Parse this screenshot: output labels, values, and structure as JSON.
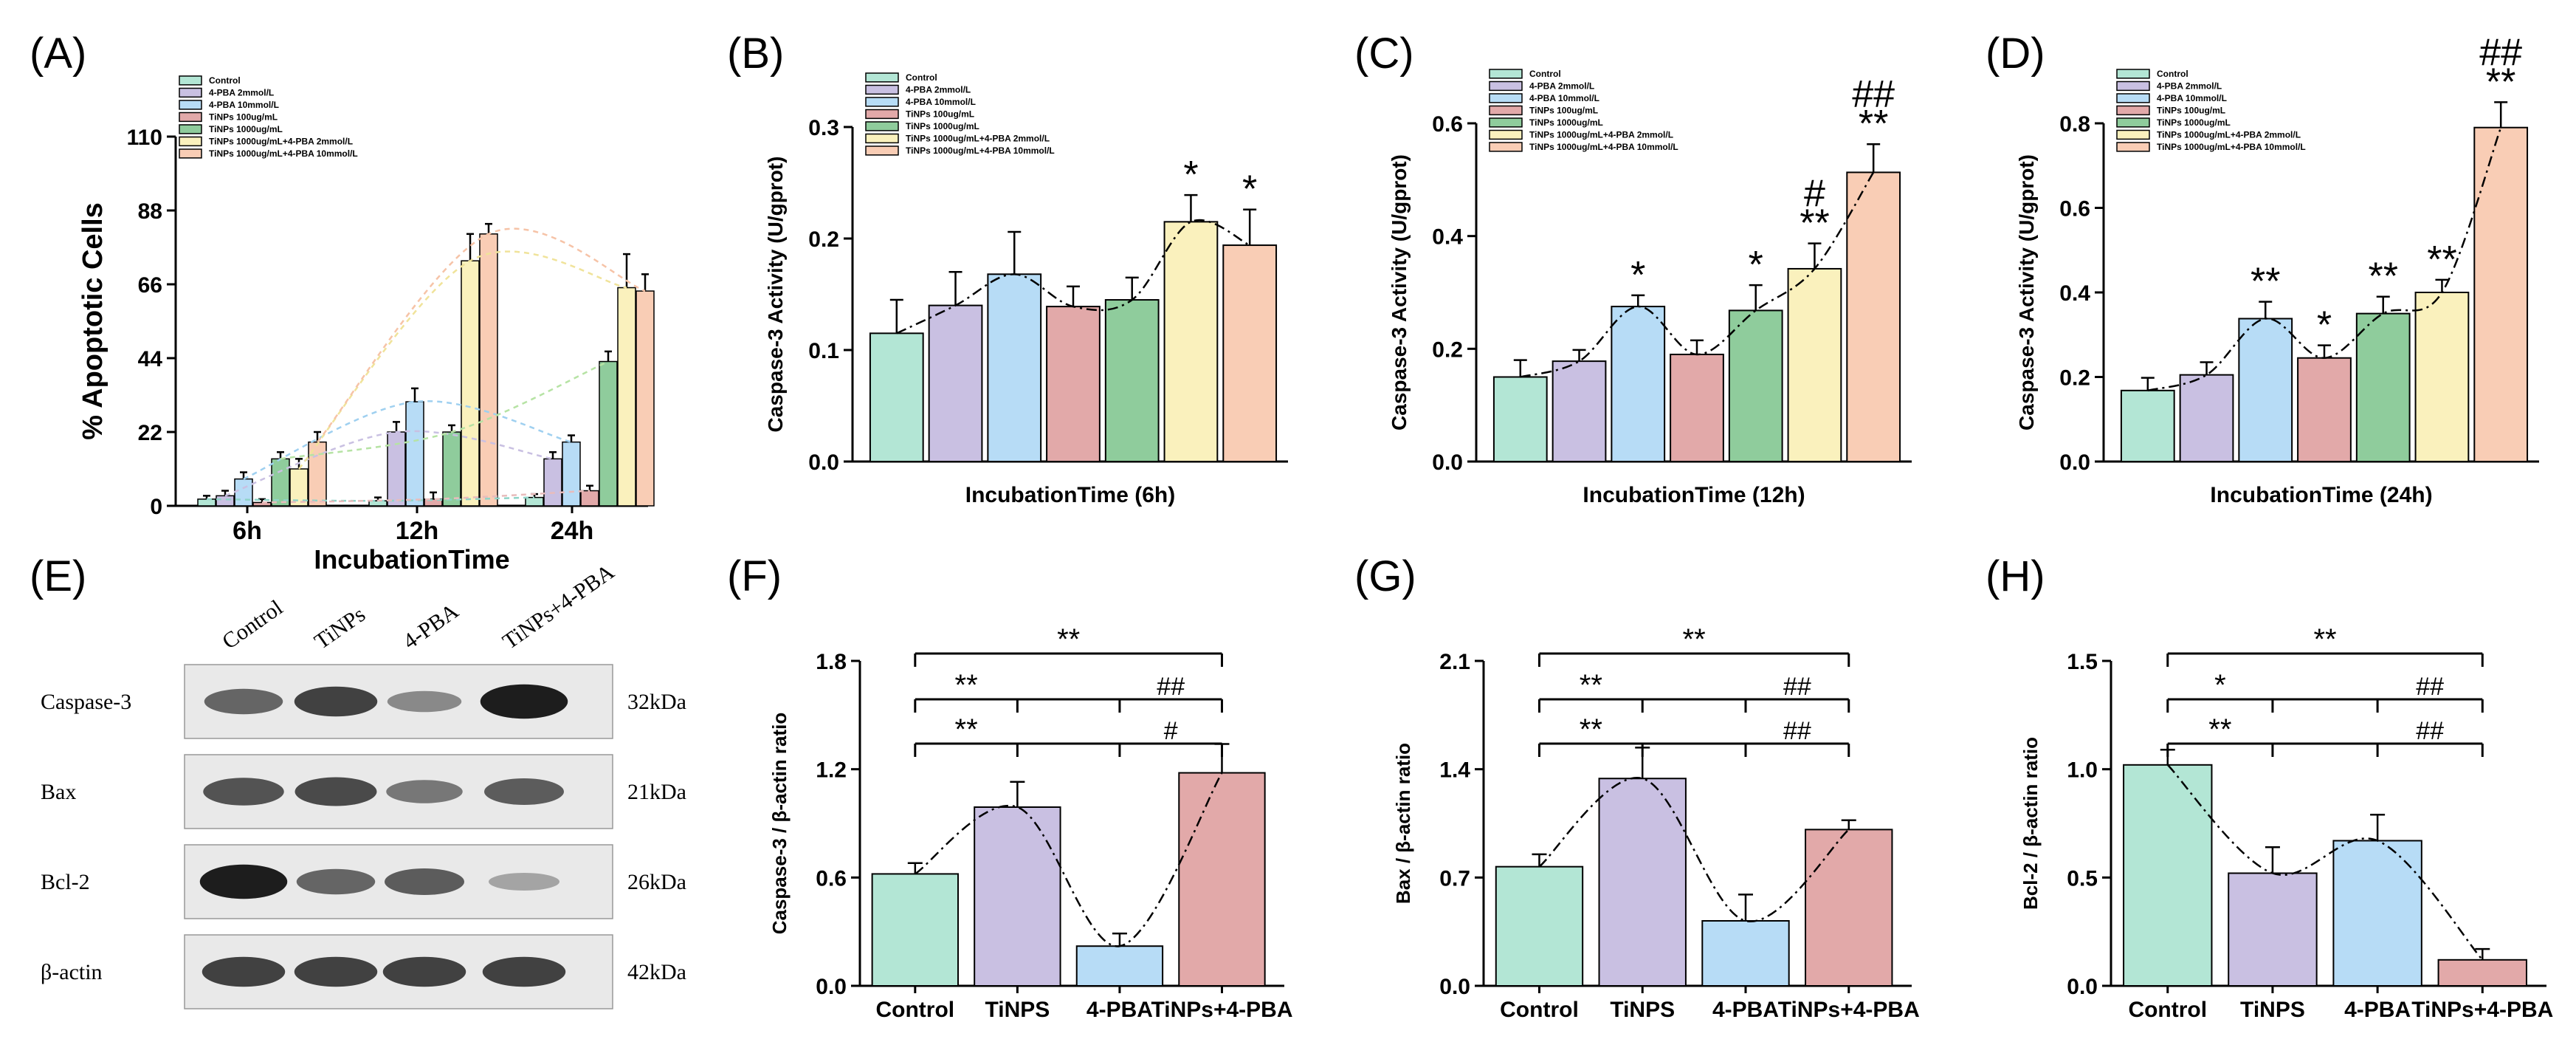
{
  "figure": {
    "panel_labels": [
      "(A)",
      "(B)",
      "(C)",
      "(D)",
      "(E)",
      "(F)",
      "(G)",
      "(H)"
    ]
  },
  "colors": {
    "teal": "#b3e6d5",
    "lavender": "#c9c0e2",
    "lightblue": "#b7dcf6",
    "rose": "#e2a9a9",
    "green": "#8fcc9c",
    "cream": "#faf1bd",
    "peach": "#f9cdb5",
    "axis": "#000000",
    "fit_green": "#b6e3a4",
    "fit_teal": "#8fd4c8"
  },
  "treatments": [
    "Control",
    "4-PBA 2mmol/L",
    "4-PBA 10mmol/L",
    "TiNPs 100ug/mL",
    "TiNPs 1000ug/mL",
    "TiNPs 1000ug/mL+4-PBA 2mmol/L",
    "TiNPs 1000ug/mL+4-PBA 10mmol/L"
  ],
  "chart_data": [
    {
      "panel": "(A)",
      "type": "bar",
      "categories": [
        "6h",
        "12h",
        "24h"
      ],
      "series": [
        {
          "name": "Control",
          "values": [
            2,
            1.5,
            2.5
          ],
          "errors": [
            1,
            1,
            1
          ]
        },
        {
          "name": "4-PBA 2mmol/L",
          "values": [
            3,
            22,
            14
          ],
          "errors": [
            1.5,
            3,
            2
          ]
        },
        {
          "name": "4-PBA 10mmol/L",
          "values": [
            8,
            31,
            19
          ],
          "errors": [
            2,
            4,
            2
          ]
        },
        {
          "name": "TiNPs 100ug/mL",
          "values": [
            1,
            2,
            4.5
          ],
          "errors": [
            1,
            2,
            1.5
          ]
        },
        {
          "name": "TiNPs 1000ug/mL",
          "values": [
            14,
            22,
            43
          ],
          "errors": [
            2,
            2,
            3
          ]
        },
        {
          "name": "TiNPs 1000ug/mL+4-PBA 2mmol/L",
          "values": [
            11,
            73,
            65
          ],
          "errors": [
            3,
            8,
            10
          ]
        },
        {
          "name": "TiNPs 1000ug/mL+4-PBA 10mmol/L",
          "values": [
            19,
            81,
            64
          ],
          "errors": [
            3,
            3,
            5
          ]
        }
      ],
      "xlabel": "IncubationTime",
      "ylabel": "% Apoptotic Cells",
      "ylim": [
        0,
        110
      ],
      "yticks": [
        "0",
        "22",
        "44",
        "66",
        "88",
        "110"
      ],
      "legend": "top-left"
    },
    {
      "panel": "(B)",
      "type": "bar",
      "categories": [
        "Control",
        "4-PBA 2mmol/L",
        "4-PBA 10mmol/L",
        "TiNPs 100ug/mL",
        "TiNPs 1000ug/mL",
        "TiNPs 1000ug/mL+4-PBA 2mmol/L",
        "TiNPs 1000ug/mL+4-PBA 10mmol/L"
      ],
      "values": [
        0.115,
        0.14,
        0.168,
        0.139,
        0.145,
        0.215,
        0.194
      ],
      "errors": [
        0.03,
        0.03,
        0.038,
        0.018,
        0.02,
        0.024,
        0.032
      ],
      "annotations": [
        "",
        "",
        "",
        "",
        "",
        "*",
        "*"
      ],
      "xlabel": "IncubationTime (6h)",
      "ylabel": "Caspase-3 Activity (U/gprot)",
      "ylim": [
        0,
        0.3
      ],
      "yticks": [
        "0.0",
        "0.1",
        "0.2",
        "0.3"
      ],
      "legend": "top-left"
    },
    {
      "panel": "(C)",
      "type": "bar",
      "categories": [
        "Control",
        "4-PBA 2mmol/L",
        "4-PBA 10mmol/L",
        "TiNPs 100ug/mL",
        "TiNPs 1000ug/mL",
        "TiNPs 1000ug/mL+4-PBA 2mmol/L",
        "TiNPs 1000ug/mL+4-PBA 10mmol/L"
      ],
      "values": [
        0.15,
        0.178,
        0.275,
        0.19,
        0.268,
        0.342,
        0.513
      ],
      "errors": [
        0.03,
        0.02,
        0.02,
        0.025,
        0.045,
        0.045,
        0.05
      ],
      "annotations": [
        "",
        "",
        "*",
        "",
        "*",
        "#\n**",
        "##\n**"
      ],
      "xlabel": "IncubationTime (12h)",
      "ylabel": "Caspase-3 Activity (U/gprot)",
      "ylim": [
        0,
        0.6
      ],
      "yticks": [
        "0.0",
        "0.2",
        "0.4",
        "0.6"
      ],
      "legend": "top-left"
    },
    {
      "panel": "(D)",
      "type": "bar",
      "categories": [
        "Control",
        "4-PBA 2mmol/L",
        "4-PBA 10mmol/L",
        "TiNPs 100ug/mL",
        "TiNPs 1000ug/mL",
        "TiNPs 1000ug/mL+4-PBA 2mmol/L",
        "TiNPs 1000ug/mL+4-PBA 10mmol/L"
      ],
      "values": [
        0.168,
        0.205,
        0.338,
        0.245,
        0.35,
        0.4,
        0.79
      ],
      "errors": [
        0.03,
        0.03,
        0.04,
        0.03,
        0.04,
        0.03,
        0.06
      ],
      "annotations": [
        "",
        "",
        "**",
        "*",
        "**",
        "**",
        "##\n**"
      ],
      "xlabel": "IncubationTime (24h)",
      "ylabel": "Caspase-3 Activity (U/gprot)",
      "ylim": [
        0,
        0.8
      ],
      "yticks": [
        "0.0",
        "0.2",
        "0.4",
        "0.6",
        "0.8"
      ],
      "legend": "top-left"
    },
    {
      "panel": "(F)",
      "type": "bar",
      "categories": [
        "Control",
        "TiNPS",
        "4-PBA",
        "TiNPs+4-PBA"
      ],
      "values": [
        0.62,
        0.99,
        0.22,
        1.18
      ],
      "errors": [
        0.06,
        0.14,
        0.07,
        0.16
      ],
      "brackets": [
        {
          "from": 0,
          "to": 3,
          "level": 1,
          "left": "**",
          "right": ""
        },
        {
          "from": 0,
          "to": 3,
          "level": 2,
          "left": "**",
          "right": "##"
        },
        {
          "from": 0,
          "to": 3,
          "level": 3,
          "left": "**",
          "right": "#"
        }
      ],
      "ylabel": "Caspase-3 / β-actin ratio",
      "ylim": [
        0,
        1.8
      ],
      "yticks": [
        "0.0",
        "0.6",
        "1.2",
        "1.8"
      ]
    },
    {
      "panel": "(G)",
      "type": "bar",
      "categories": [
        "Control",
        "TiNPS",
        "4-PBA",
        "TiNPs+4-PBA"
      ],
      "values": [
        0.77,
        1.34,
        0.42,
        1.01
      ],
      "errors": [
        0.08,
        0.2,
        0.17,
        0.06
      ],
      "brackets": [
        {
          "from": 0,
          "to": 3,
          "level": 1,
          "left": "**",
          "right": ""
        },
        {
          "from": 0,
          "to": 3,
          "level": 2,
          "left": "**",
          "right": "##"
        },
        {
          "from": 0,
          "to": 3,
          "level": 3,
          "left": "**",
          "right": "##"
        }
      ],
      "ylabel": "Bax / β-actin ratio",
      "ylim": [
        0,
        2.1
      ],
      "yticks": [
        "0.0",
        "0.7",
        "1.4",
        "2.1"
      ]
    },
    {
      "panel": "(H)",
      "type": "bar",
      "categories": [
        "Control",
        "TiNPS",
        "4-PBA",
        "TiNPs+4-PBA"
      ],
      "values": [
        1.02,
        0.52,
        0.67,
        0.12
      ],
      "errors": [
        0.07,
        0.12,
        0.12,
        0.05
      ],
      "brackets": [
        {
          "from": 0,
          "to": 3,
          "level": 1,
          "left": "**",
          "right": ""
        },
        {
          "from": 0,
          "to": 3,
          "level": 2,
          "left": "*",
          "right": "##"
        },
        {
          "from": 0,
          "to": 3,
          "level": 3,
          "left": "**",
          "right": "##"
        }
      ],
      "ylabel": "Bcl-2 / β-actin ratio",
      "ylim": [
        0,
        1.5
      ],
      "yticks": [
        "0.0",
        "0.5",
        "1.0",
        "1.5"
      ]
    }
  ],
  "western_blot": {
    "panel": "(E)",
    "lanes": [
      "Control",
      "TiNPs",
      "4-PBA",
      "TiNPs+4-PBA"
    ],
    "rows": [
      {
        "protein": "Caspase-3",
        "size": "32kDa",
        "intensity": [
          0.55,
          0.75,
          0.35,
          0.95
        ]
      },
      {
        "protein": "Bax",
        "size": "21kDa",
        "intensity": [
          0.65,
          0.7,
          0.45,
          0.6
        ]
      },
      {
        "protein": "Bcl-2",
        "size": "26kDa",
        "intensity": [
          0.95,
          0.55,
          0.6,
          0.2
        ]
      },
      {
        "protein": "β-actin",
        "size": "42kDa",
        "intensity": [
          0.75,
          0.75,
          0.75,
          0.75
        ]
      }
    ]
  }
}
